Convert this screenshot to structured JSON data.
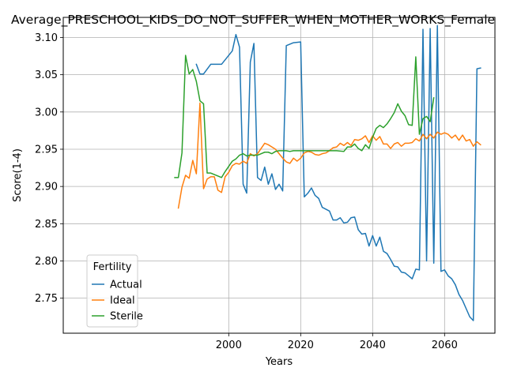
{
  "chart_data": {
    "type": "line",
    "title": "Average_PRESCHOOL_KIDS_DO_NOT_SUFFER_WHEN_MOTHER_WORKS_Female",
    "xlabel": "Years",
    "ylabel": "Score(1-4)",
    "xlim": [
      1954,
      2074
    ],
    "ylim": [
      2.703,
      3.127
    ],
    "xticks": [
      2000,
      2020,
      2040,
      2060
    ],
    "yticks": [
      2.75,
      2.8,
      2.85,
      2.9,
      2.95,
      3.0,
      3.05,
      3.1
    ],
    "ytick_labels": [
      "2.75",
      "2.80",
      "2.85",
      "2.90",
      "2.95",
      "3.00",
      "3.05",
      "3.10"
    ],
    "grid": true,
    "legend": {
      "title": "Fertility",
      "placement": "lower-left"
    },
    "colors": {
      "Actual": "#1f77b4",
      "Ideal": "#ff7f0e",
      "Sterile": "#2ca02c"
    },
    "series": [
      {
        "name": "Actual",
        "points": [
          [
            1991,
            3.064
          ],
          [
            1992,
            3.051
          ],
          [
            1993,
            3.051
          ],
          [
            1995,
            3.064
          ],
          [
            1998,
            3.064
          ],
          [
            2001,
            3.082
          ],
          [
            2002,
            3.104
          ],
          [
            2003,
            3.087
          ],
          [
            2004,
            2.903
          ],
          [
            2005,
            2.891
          ],
          [
            2006,
            3.067
          ],
          [
            2007,
            3.092
          ],
          [
            2008,
            2.912
          ],
          [
            2009,
            2.908
          ],
          [
            2010,
            2.926
          ],
          [
            2011,
            2.903
          ],
          [
            2012,
            2.917
          ],
          [
            2013,
            2.896
          ],
          [
            2014,
            2.903
          ],
          [
            2015,
            2.894
          ],
          [
            2016,
            3.089
          ],
          [
            2018,
            3.093
          ],
          [
            2020,
            3.094
          ],
          [
            2021,
            2.886
          ],
          [
            2022,
            2.891
          ],
          [
            2023,
            2.898
          ],
          [
            2024,
            2.888
          ],
          [
            2025,
            2.884
          ],
          [
            2026,
            2.872
          ],
          [
            2028,
            2.867
          ],
          [
            2029,
            2.855
          ],
          [
            2030,
            2.855
          ],
          [
            2031,
            2.858
          ],
          [
            2032,
            2.851
          ],
          [
            2033,
            2.852
          ],
          [
            2034,
            2.858
          ],
          [
            2035,
            2.859
          ],
          [
            2036,
            2.842
          ],
          [
            2037,
            2.836
          ],
          [
            2038,
            2.837
          ],
          [
            2039,
            2.82
          ],
          [
            2040,
            2.834
          ],
          [
            2041,
            2.82
          ],
          [
            2042,
            2.832
          ],
          [
            2043,
            2.813
          ],
          [
            2044,
            2.81
          ],
          [
            2045,
            2.802
          ],
          [
            2046,
            2.793
          ],
          [
            2047,
            2.792
          ],
          [
            2048,
            2.785
          ],
          [
            2049,
            2.784
          ],
          [
            2050,
            2.78
          ],
          [
            2051,
            2.776
          ],
          [
            2052,
            2.789
          ],
          [
            2053,
            2.788
          ],
          [
            2054,
            3.111
          ],
          [
            2055,
            2.8
          ],
          [
            2056,
            3.112
          ],
          [
            2057,
            2.797
          ],
          [
            2058,
            3.116
          ],
          [
            2059,
            2.786
          ],
          [
            2060,
            2.788
          ],
          [
            2061,
            2.78
          ],
          [
            2062,
            2.776
          ],
          [
            2063,
            2.768
          ],
          [
            2064,
            2.755
          ],
          [
            2065,
            2.747
          ],
          [
            2066,
            2.736
          ],
          [
            2067,
            2.725
          ],
          [
            2068,
            2.72
          ],
          [
            2069,
            3.058
          ],
          [
            2070,
            3.059
          ]
        ]
      },
      {
        "name": "Ideal",
        "points": [
          [
            1986,
            2.871
          ],
          [
            1987,
            2.899
          ],
          [
            1988,
            2.915
          ],
          [
            1989,
            2.911
          ],
          [
            1990,
            2.935
          ],
          [
            1991,
            2.917
          ],
          [
            1992,
            3.012
          ],
          [
            1993,
            2.897
          ],
          [
            1994,
            2.91
          ],
          [
            1995,
            2.913
          ],
          [
            1996,
            2.913
          ],
          [
            1997,
            2.895
          ],
          [
            1998,
            2.892
          ],
          [
            1999,
            2.913
          ],
          [
            2000,
            2.919
          ],
          [
            2001,
            2.928
          ],
          [
            2002,
            2.931
          ],
          [
            2003,
            2.93
          ],
          [
            2004,
            2.934
          ],
          [
            2005,
            2.931
          ],
          [
            2006,
            2.944
          ],
          [
            2007,
            2.941
          ],
          [
            2008,
            2.944
          ],
          [
            2009,
            2.951
          ],
          [
            2010,
            2.958
          ],
          [
            2011,
            2.956
          ],
          [
            2012,
            2.953
          ],
          [
            2013,
            2.95
          ],
          [
            2014,
            2.944
          ],
          [
            2015,
            2.938
          ],
          [
            2016,
            2.933
          ],
          [
            2017,
            2.931
          ],
          [
            2018,
            2.938
          ],
          [
            2019,
            2.934
          ],
          [
            2020,
            2.938
          ],
          [
            2021,
            2.945
          ],
          [
            2022,
            2.947
          ],
          [
            2023,
            2.946
          ],
          [
            2024,
            2.943
          ],
          [
            2025,
            2.942
          ],
          [
            2026,
            2.944
          ],
          [
            2027,
            2.945
          ],
          [
            2028,
            2.948
          ],
          [
            2029,
            2.952
          ],
          [
            2030,
            2.953
          ],
          [
            2031,
            2.958
          ],
          [
            2032,
            2.955
          ],
          [
            2033,
            2.959
          ],
          [
            2034,
            2.955
          ],
          [
            2035,
            2.963
          ],
          [
            2036,
            2.962
          ],
          [
            2037,
            2.964
          ],
          [
            2038,
            2.968
          ],
          [
            2039,
            2.959
          ],
          [
            2040,
            2.968
          ],
          [
            2041,
            2.962
          ],
          [
            2042,
            2.967
          ],
          [
            2043,
            2.957
          ],
          [
            2044,
            2.957
          ],
          [
            2045,
            2.951
          ],
          [
            2046,
            2.957
          ],
          [
            2047,
            2.959
          ],
          [
            2048,
            2.954
          ],
          [
            2049,
            2.958
          ],
          [
            2050,
            2.958
          ],
          [
            2051,
            2.959
          ],
          [
            2052,
            2.964
          ],
          [
            2053,
            2.961
          ],
          [
            2054,
            2.97
          ],
          [
            2055,
            2.964
          ],
          [
            2056,
            2.97
          ],
          [
            2057,
            2.965
          ],
          [
            2058,
            2.973
          ],
          [
            2059,
            2.97
          ],
          [
            2060,
            2.972
          ],
          [
            2061,
            2.97
          ],
          [
            2062,
            2.965
          ],
          [
            2063,
            2.969
          ],
          [
            2064,
            2.962
          ],
          [
            2065,
            2.969
          ],
          [
            2066,
            2.961
          ],
          [
            2067,
            2.963
          ],
          [
            2068,
            2.954
          ],
          [
            2069,
            2.96
          ],
          [
            2070,
            2.956
          ]
        ]
      },
      {
        "name": "Sterile",
        "points": [
          [
            1985,
            2.912
          ],
          [
            1986,
            2.912
          ],
          [
            1987,
            2.945
          ],
          [
            1988,
            3.076
          ],
          [
            1989,
            3.051
          ],
          [
            1990,
            3.057
          ],
          [
            1991,
            3.041
          ],
          [
            1992,
            3.015
          ],
          [
            1993,
            3.011
          ],
          [
            1994,
            2.918
          ],
          [
            1995,
            2.918
          ],
          [
            1996,
            2.916
          ],
          [
            1997,
            2.914
          ],
          [
            1998,
            2.912
          ],
          [
            1999,
            2.92
          ],
          [
            2000,
            2.927
          ],
          [
            2001,
            2.934
          ],
          [
            2002,
            2.937
          ],
          [
            2003,
            2.942
          ],
          [
            2004,
            2.944
          ],
          [
            2005,
            2.941
          ],
          [
            2006,
            2.942
          ],
          [
            2007,
            2.942
          ],
          [
            2008,
            2.942
          ],
          [
            2009,
            2.944
          ],
          [
            2010,
            2.946
          ],
          [
            2011,
            2.946
          ],
          [
            2012,
            2.944
          ],
          [
            2013,
            2.947
          ],
          [
            2014,
            2.948
          ],
          [
            2015,
            2.948
          ],
          [
            2016,
            2.948
          ],
          [
            2017,
            2.947
          ],
          [
            2018,
            2.948
          ],
          [
            2019,
            2.948
          ],
          [
            2020,
            2.948
          ],
          [
            2021,
            2.948
          ],
          [
            2022,
            2.948
          ],
          [
            2030,
            2.948
          ],
          [
            2032,
            2.947
          ],
          [
            2033,
            2.953
          ],
          [
            2034,
            2.953
          ],
          [
            2035,
            2.957
          ],
          [
            2036,
            2.951
          ],
          [
            2037,
            2.948
          ],
          [
            2038,
            2.956
          ],
          [
            2039,
            2.951
          ],
          [
            2040,
            2.966
          ],
          [
            2041,
            2.978
          ],
          [
            2042,
            2.982
          ],
          [
            2043,
            2.979
          ],
          [
            2044,
            2.984
          ],
          [
            2045,
            2.991
          ],
          [
            2046,
            2.999
          ],
          [
            2047,
            3.011
          ],
          [
            2048,
            3.001
          ],
          [
            2049,
            2.995
          ],
          [
            2050,
            2.983
          ],
          [
            2051,
            2.982
          ],
          [
            2052,
            3.074
          ],
          [
            2053,
            2.97
          ],
          [
            2054,
            2.991
          ],
          [
            2055,
            2.994
          ],
          [
            2056,
            2.987
          ],
          [
            2057,
            3.019
          ]
        ]
      }
    ]
  }
}
